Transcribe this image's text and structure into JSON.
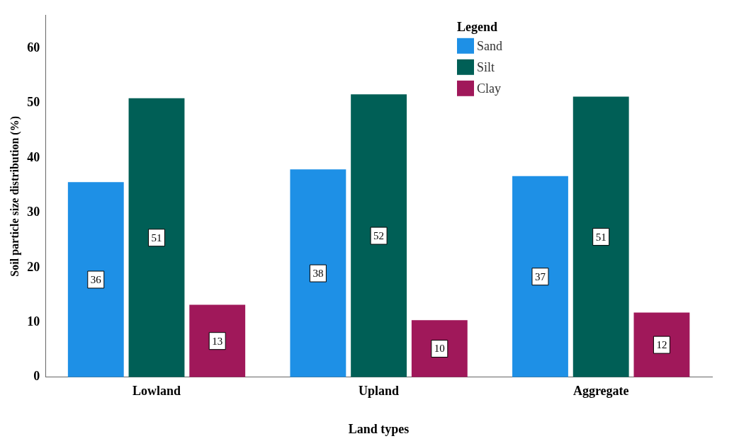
{
  "chart_data": {
    "type": "bar",
    "xlabel": "Land types",
    "ylabel": "Soil particle size distribution (%)",
    "legend_title": "Legend",
    "legend": "top right",
    "grid": false,
    "categories": [
      "Lowland",
      "Upland",
      "Aggregate"
    ],
    "series": [
      {
        "name": "Sand",
        "color": "#1e90e6",
        "values": [
          35.6,
          37.9,
          36.7
        ],
        "value_labels": [
          "36",
          "38",
          "37"
        ]
      },
      {
        "name": "Silt",
        "color": "#005f56",
        "values": [
          50.9,
          51.6,
          51.2
        ],
        "value_labels": [
          "51",
          "52",
          "51"
        ]
      },
      {
        "name": "Clay",
        "color": "#a0185a",
        "values": [
          13.2,
          10.4,
          11.8
        ],
        "value_labels": [
          "13",
          "10",
          "12"
        ]
      }
    ],
    "ylim": [
      0,
      66
    ],
    "yticks": [
      0,
      10,
      20,
      30,
      40,
      50,
      60
    ]
  }
}
